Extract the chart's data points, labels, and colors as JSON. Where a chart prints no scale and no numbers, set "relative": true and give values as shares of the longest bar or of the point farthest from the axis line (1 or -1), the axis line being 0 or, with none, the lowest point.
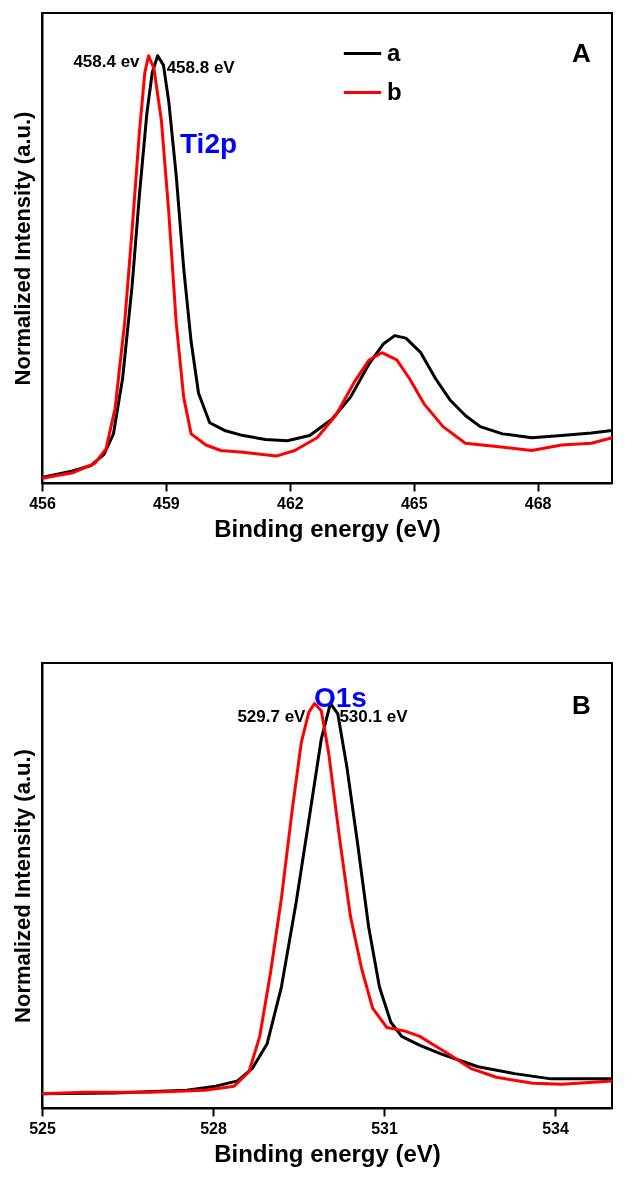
{
  "chart_data": [
    {
      "type": "line",
      "relative": true,
      "xlabel": "Binding energy (eV)",
      "ylabel": "Normalized Intensity (a.u.)",
      "xlim": [
        456,
        469.8
      ],
      "xticks": [
        456,
        459,
        462,
        465,
        468
      ],
      "tick_labels": "x",
      "legend": "top right",
      "grid": false,
      "line_style": "solid",
      "marker": "none",
      "annotations": [
        {
          "text": "458.4 ev",
          "x": 458.58,
          "y": 1.0
        },
        {
          "text": "458.8 eV",
          "x": 458.8,
          "y": 1.0
        },
        "Ti2p",
        "A"
      ],
      "series": [
        {
          "name": "a",
          "color": "#000000",
          "x": [
            456.0,
            456.74,
            457.19,
            457.5,
            457.73,
            457.95,
            458.18,
            458.36,
            458.54,
            458.67,
            458.8,
            458.94,
            459.07,
            459.25,
            459.43,
            459.61,
            459.79,
            460.06,
            460.42,
            460.87,
            461.41,
            461.94,
            462.48,
            463.02,
            463.47,
            463.92,
            464.27,
            464.54,
            464.81,
            465.17,
            465.53,
            465.89,
            466.25,
            466.61,
            467.15,
            467.86,
            468.58,
            469.3,
            469.8
          ],
          "values": [
            0.013,
            0.028,
            0.041,
            0.067,
            0.115,
            0.244,
            0.46,
            0.676,
            0.866,
            0.961,
            1.0,
            0.978,
            0.892,
            0.719,
            0.503,
            0.331,
            0.21,
            0.141,
            0.123,
            0.111,
            0.102,
            0.099,
            0.111,
            0.149,
            0.201,
            0.279,
            0.326,
            0.345,
            0.339,
            0.305,
            0.244,
            0.193,
            0.158,
            0.132,
            0.115,
            0.106,
            0.111,
            0.117,
            0.123
          ]
        },
        {
          "name": "b",
          "color": "#ff0000",
          "x": [
            456.0,
            456.74,
            457.28,
            457.55,
            457.77,
            458.0,
            458.18,
            458.36,
            458.49,
            458.58,
            458.71,
            458.89,
            459.07,
            459.25,
            459.43,
            459.61,
            459.97,
            460.33,
            460.87,
            461.67,
            462.12,
            462.66,
            463.11,
            463.56,
            463.92,
            464.23,
            464.59,
            464.9,
            465.26,
            465.71,
            466.25,
            467.06,
            467.86,
            468.58,
            469.3,
            469.8
          ],
          "values": [
            0.011,
            0.024,
            0.046,
            0.08,
            0.175,
            0.374,
            0.59,
            0.823,
            0.961,
            1.0,
            0.97,
            0.849,
            0.633,
            0.374,
            0.201,
            0.115,
            0.089,
            0.076,
            0.072,
            0.063,
            0.076,
            0.106,
            0.158,
            0.236,
            0.288,
            0.305,
            0.288,
            0.244,
            0.184,
            0.132,
            0.093,
            0.085,
            0.076,
            0.089,
            0.093,
            0.106
          ]
        }
      ]
    },
    {
      "type": "line",
      "relative": true,
      "xlabel": "Binding energy (eV)",
      "ylabel": "Normalized Intensity (a.u.)",
      "xlim": [
        525,
        535
      ],
      "xticks": [
        525,
        528,
        531,
        534
      ],
      "tick_labels": "x",
      "legend": "top left",
      "grid": false,
      "line_style": "solid",
      "marker": "none",
      "annotations": [
        {
          "text": "529.7 eV",
          "x": 529.78,
          "y": 1.0
        },
        {
          "text": "530.1 eV",
          "x": 530.06,
          "y": 1.0
        },
        "O1s",
        "B"
      ],
      "series": [
        {
          "name": "a",
          "color": "#000000",
          "x": [
            525.0,
            526.26,
            527.54,
            528.05,
            528.43,
            528.69,
            528.95,
            529.2,
            529.46,
            529.71,
            529.9,
            530.06,
            530.19,
            530.35,
            530.54,
            530.73,
            530.92,
            531.12,
            531.31,
            531.63,
            532.01,
            532.65,
            533.29,
            533.93,
            534.44,
            535.0
          ],
          "values": [
            0.035,
            0.037,
            0.044,
            0.054,
            0.067,
            0.098,
            0.159,
            0.299,
            0.509,
            0.737,
            0.912,
            1.0,
            0.974,
            0.842,
            0.65,
            0.448,
            0.299,
            0.212,
            0.177,
            0.155,
            0.133,
            0.102,
            0.085,
            0.072,
            0.072,
            0.072
          ]
        },
        {
          "name": "b",
          "color": "#ff0000",
          "x": [
            525.0,
            525.75,
            526.9,
            527.86,
            528.37,
            528.63,
            528.82,
            529.01,
            529.2,
            529.39,
            529.55,
            529.68,
            529.78,
            529.9,
            530.03,
            530.22,
            530.41,
            530.61,
            530.8,
            531.05,
            531.37,
            531.63,
            531.88,
            532.14,
            532.52,
            532.97,
            533.61,
            534.12,
            535.0
          ],
          "values": [
            0.035,
            0.039,
            0.039,
            0.044,
            0.054,
            0.089,
            0.177,
            0.335,
            0.518,
            0.737,
            0.904,
            0.978,
            1.0,
            0.982,
            0.877,
            0.667,
            0.475,
            0.343,
            0.247,
            0.199,
            0.19,
            0.177,
            0.155,
            0.133,
            0.098,
            0.076,
            0.061,
            0.059,
            0.067
          ]
        }
      ]
    }
  ]
}
